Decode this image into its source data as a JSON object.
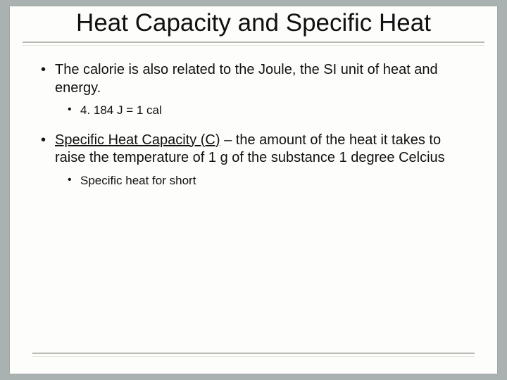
{
  "slide": {
    "background_color": "#a9b2b1",
    "panel_color": "#fdfdfb",
    "rule_color": "#b9b9b2",
    "title": "Heat Capacity and Specific Heat",
    "title_fontsize": 35,
    "body_fontsize": 20,
    "sub_fontsize": 17,
    "text_color": "#111111",
    "bullets": [
      {
        "text": "The calorie is also related to the Joule, the SI unit of heat and energy.",
        "sub": [
          {
            "text": "4. 184 J = 1 cal"
          }
        ]
      },
      {
        "prefix_underlined": "Specific Heat Capacity (C)",
        "rest": " – the amount of the heat it takes to raise the temperature of 1 g of the substance 1 degree Celcius",
        "sub": [
          {
            "text": "Specific heat for short"
          }
        ]
      }
    ]
  }
}
